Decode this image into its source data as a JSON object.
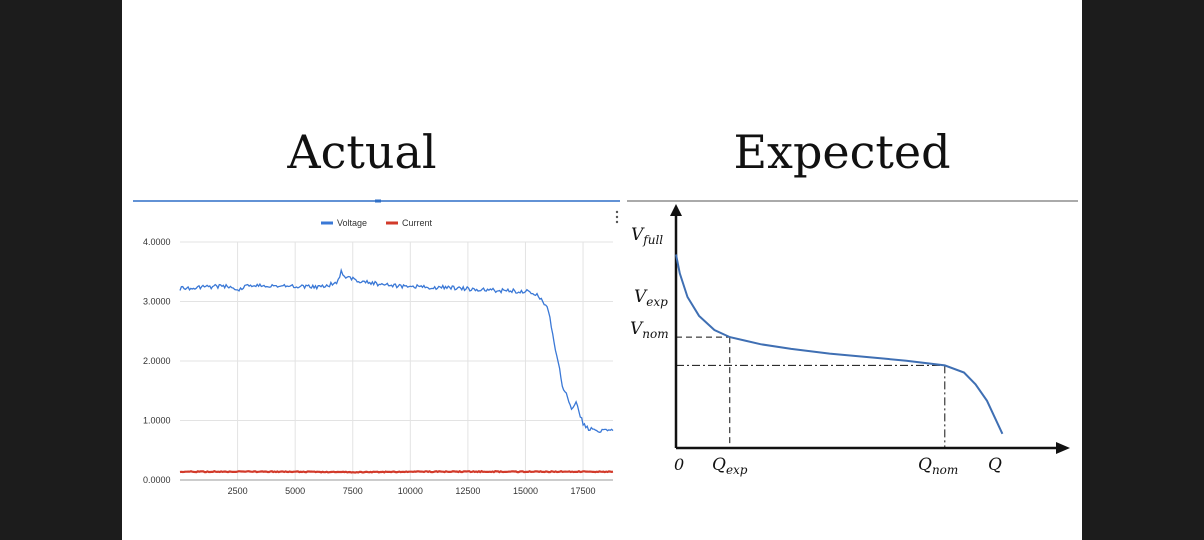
{
  "titles": {
    "actual": "Actual",
    "expected": "Expected"
  },
  "colors": {
    "voltage": "#3a78d6",
    "current": "#d23a2a",
    "expected_curve": "#3f6fb3",
    "axis": "#111111",
    "grid": "#e3e3e3",
    "top_rule": "#2f6fc7"
  },
  "chart_data": [
    {
      "type": "line",
      "title": "Actual",
      "xlabel": "",
      "ylabel": "",
      "xlim": [
        0,
        18800
      ],
      "ylim": [
        0,
        4
      ],
      "x_ticks": [
        "2500",
        "5000",
        "7500",
        "10000",
        "12500",
        "15000",
        "17500"
      ],
      "y_ticks": [
        "0.0000",
        "1.0000",
        "2.0000",
        "3.0000",
        "4.0000"
      ],
      "grid": true,
      "legend_placement": "top-center",
      "series": [
        {
          "name": "Voltage",
          "x": [
            0,
            1000,
            2000,
            2500,
            3000,
            4000,
            5000,
            6000,
            6800,
            7000,
            7200,
            8000,
            9000,
            10000,
            11000,
            12000,
            13000,
            14000,
            15000,
            15500,
            16000,
            16300,
            16600,
            17000,
            17200,
            17500,
            17800,
            18500,
            18800
          ],
          "y": [
            3.22,
            3.24,
            3.26,
            3.2,
            3.28,
            3.26,
            3.26,
            3.25,
            3.3,
            3.5,
            3.4,
            3.33,
            3.27,
            3.25,
            3.24,
            3.23,
            3.2,
            3.18,
            3.17,
            3.13,
            2.85,
            2.2,
            1.6,
            1.2,
            1.3,
            0.95,
            0.85,
            0.82,
            0.83
          ]
        },
        {
          "name": "Current",
          "x": [
            0,
            2500,
            5000,
            7500,
            10000,
            12500,
            15000,
            17500,
            18800
          ],
          "y": [
            0.14,
            0.14,
            0.14,
            0.13,
            0.14,
            0.14,
            0.14,
            0.14,
            0.14
          ]
        }
      ]
    },
    {
      "type": "line",
      "title": "Expected",
      "xlabel": "Q",
      "ylabel": "",
      "xlim": [
        0,
        1
      ],
      "ylim": [
        0,
        1
      ],
      "x_ticks": [
        "0",
        "Q_exp",
        "Q_nom",
        "Q"
      ],
      "y_ticks": [
        "V_full",
        "V_exp",
        "V_nom"
      ],
      "annotations": {
        "origin": "0",
        "x_axis_label": "Q",
        "q_exp": {
          "main": "Q",
          "sub": "exp"
        },
        "q_nom": {
          "main": "Q",
          "sub": "nom"
        },
        "v_full": {
          "main": "V",
          "sub": "full"
        },
        "v_exp": {
          "main": "V",
          "sub": "exp"
        },
        "v_nom": {
          "main": "V",
          "sub": "nom"
        }
      },
      "series": [
        {
          "x": [
            0.0,
            0.01,
            0.03,
            0.06,
            0.1,
            0.14,
            0.18,
            0.22,
            0.3,
            0.4,
            0.5,
            0.6,
            0.7,
            0.75,
            0.78,
            0.81,
            0.83,
            0.85
          ],
          "y": [
            0.82,
            0.74,
            0.64,
            0.56,
            0.5,
            0.47,
            0.455,
            0.44,
            0.42,
            0.4,
            0.385,
            0.37,
            0.35,
            0.32,
            0.27,
            0.2,
            0.13,
            0.06
          ]
        }
      ]
    }
  ]
}
